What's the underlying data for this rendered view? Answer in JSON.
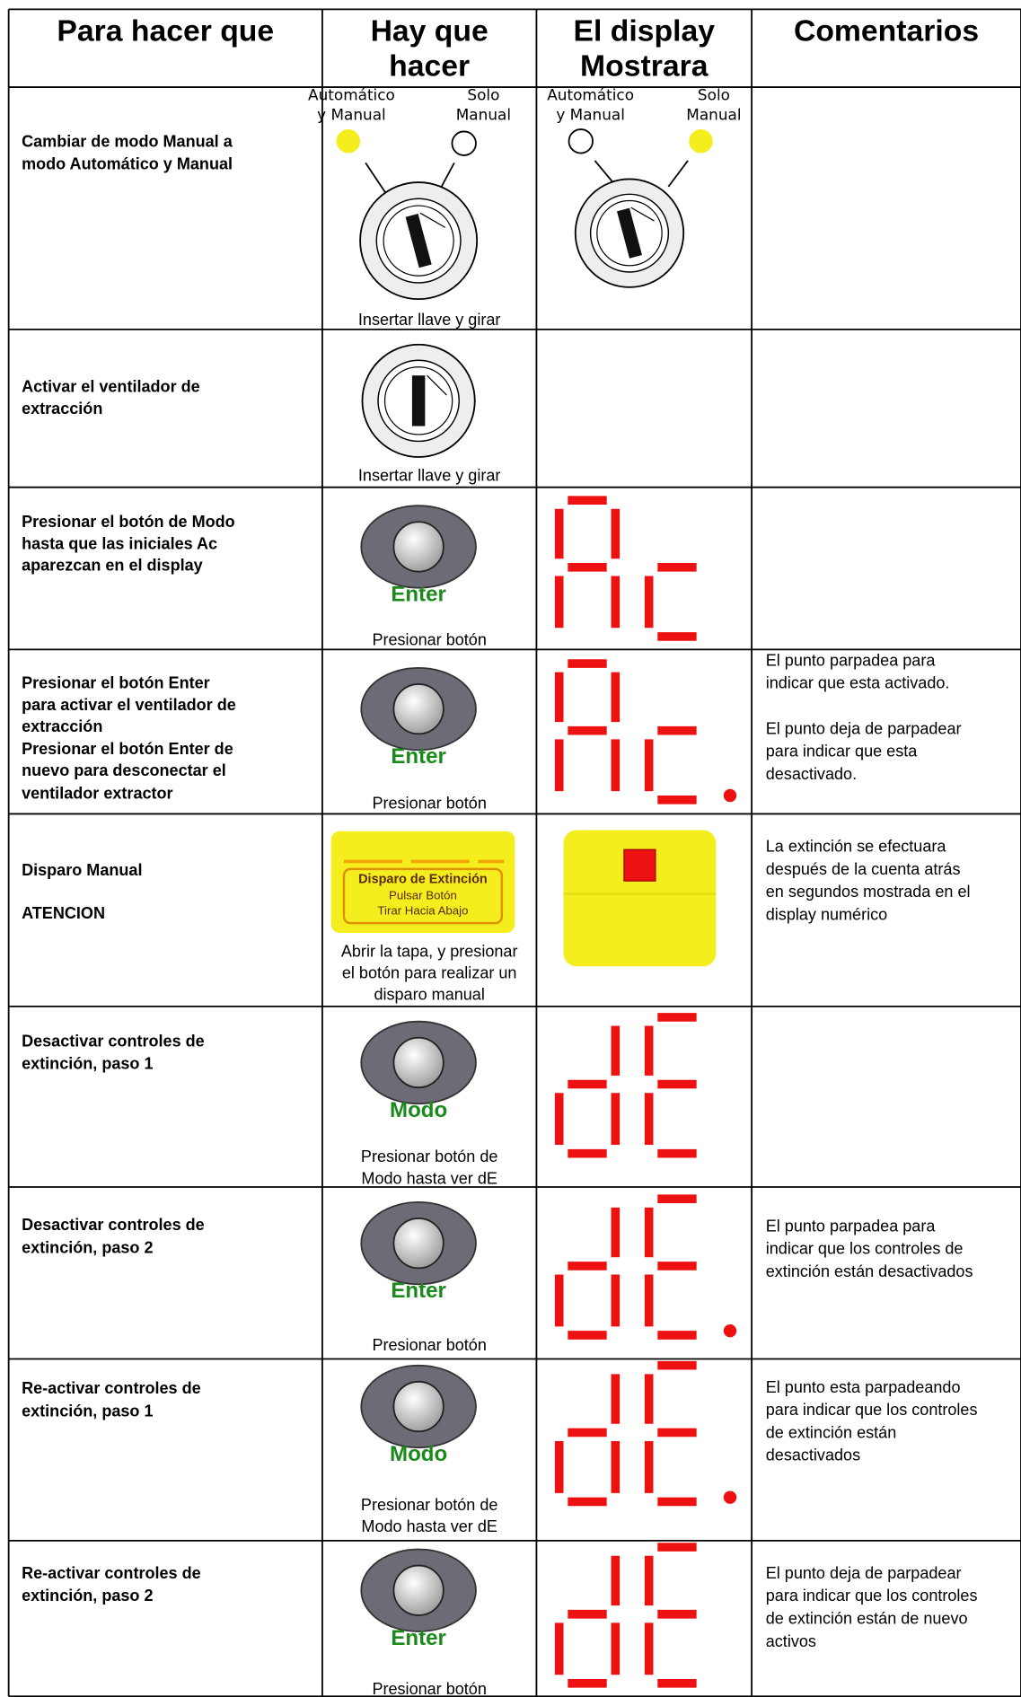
{
  "header": [
    [
      "Para hacer que"
    ],
    [
      "Hay que",
      "hacer"
    ],
    [
      "El display",
      "Mostrara"
    ],
    [
      "Comentarios"
    ]
  ],
  "key_labels": {
    "auto": [
      "Automático",
      "y Manual"
    ],
    "manual": [
      "Solo",
      "Manual"
    ]
  },
  "rows": [
    {
      "action": [
        "Cambiar de modo Manual a",
        "modo Automático y  Manual"
      ],
      "instruction": [
        "Insertar llave y girar"
      ]
    },
    {
      "action": [
        "Activar el ventilador de",
        "extracción"
      ],
      "instruction": [
        "Insertar llave y girar"
      ]
    },
    {
      "action": [
        "Presionar el botón de  Modo",
        "hasta que las iniciales  Ac",
        "aparezcan en el display"
      ],
      "button": "Enter",
      "instruction": [
        "Presionar botón"
      ]
    },
    {
      "action": [
        "Presionar el botón Enter",
        "para activar el ventilador de",
        "extracción",
        "Presionar el botón Enter de",
        "nuevo para desconectar el",
        "ventilador extractor"
      ],
      "button": "Enter",
      "instruction": [
        "Presionar botón"
      ],
      "comments": [
        "El punto parpadea para",
        "indicar que esta activado.",
        "El punto deja de parpadear",
        "para indicar que esta",
        "desactivado."
      ]
    },
    {
      "action": [
        "Disparo Manual",
        "ATENCION"
      ],
      "panel": [
        "Disparo de Extinción",
        "Pulsar Botón",
        "Tirar Hacia Abajo"
      ],
      "instruction": [
        "Abrir la tapa, y presionar",
        "el botón para realizar un",
        "disparo manual"
      ],
      "comments": [
        "La extinción se efectuara",
        "después de la cuenta atrás",
        "en segundos mostrada en el",
        "display numérico"
      ]
    },
    {
      "action": [
        "Desactivar controles de",
        "extinción, paso 1"
      ],
      "button": "Modo",
      "instruction": [
        "Presionar botón de",
        "Modo hasta ver dE"
      ]
    },
    {
      "action": [
        "Desactivar controles de",
        "extinción, paso 2"
      ],
      "button": "Enter",
      "instruction": [
        "Presionar botón"
      ],
      "comments": [
        "El punto parpadea para",
        "indicar que los controles de",
        "extinción están desactivados"
      ]
    },
    {
      "action": [
        "Re-activar controles de",
        "extinción, paso 1"
      ],
      "button": "Modo",
      "instruction": [
        "Presionar botón de",
        "Modo hasta ver dE"
      ],
      "comments": [
        "El punto esta parpadeando",
        "para indicar que los controles",
        "de extinción están",
        "desactivados"
      ]
    },
    {
      "action": [
        "Re-activar controles de",
        "extinción, paso 2"
      ],
      "button": "Enter",
      "instruction": [
        "Presionar botón"
      ],
      "comments": [
        "El punto deja de parpadear",
        "para indicar que los controles",
        "de extinción están de nuevo",
        "activos"
      ]
    }
  ]
}
